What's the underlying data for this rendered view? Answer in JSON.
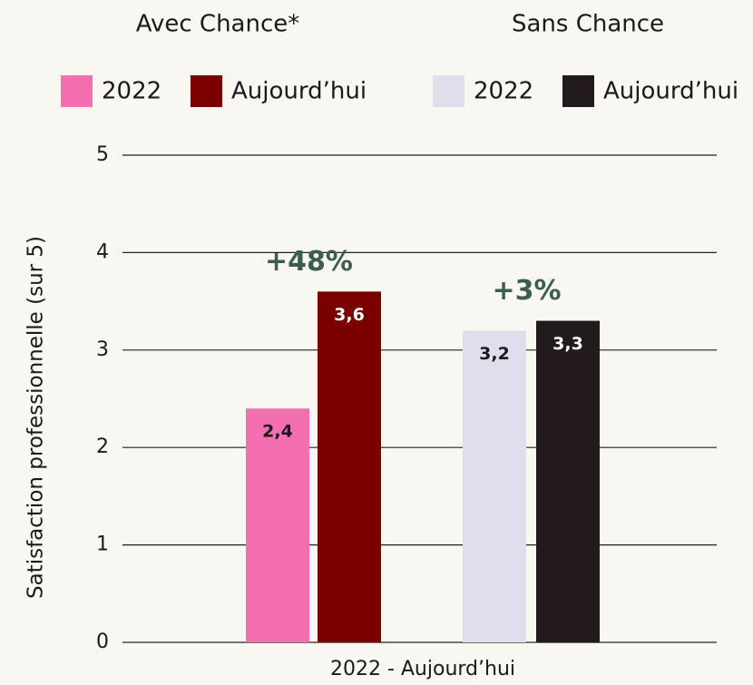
{
  "chart_data": {
    "type": "bar",
    "groups": [
      {
        "name": "Avec Chance*",
        "annotation": "+48%",
        "series": [
          {
            "name": "2022",
            "color": "#f46fb0",
            "label_color": "#1a1a1a",
            "values": [
              2.4
            ],
            "value_labels": [
              "2,4"
            ]
          },
          {
            "name": "Aujourd’hui",
            "color": "#7b0000",
            "label_color": "#ffffff",
            "values": [
              3.6
            ],
            "value_labels": [
              "3,6"
            ]
          }
        ]
      },
      {
        "name": "Sans Chance",
        "annotation": "+3%",
        "series": [
          {
            "name": "2022",
            "color": "#e0dded",
            "label_color": "#1a1a1a",
            "values": [
              3.2
            ],
            "value_labels": [
              "3,2"
            ]
          },
          {
            "name": "Aujourd’hui",
            "color": "#231a1e",
            "label_color": "#ffffff",
            "values": [
              3.3
            ],
            "value_labels": [
              "3,3"
            ]
          }
        ]
      }
    ],
    "annotation_color": "#3d5e4f",
    "categories": [
      "2022 - Aujourd’hui"
    ],
    "y_label": "Satisfaction professionnelle (sur 5)",
    "ylim": [
      0,
      5
    ],
    "yticks": [
      0,
      1,
      2,
      3,
      4,
      5
    ],
    "grid": true
  }
}
